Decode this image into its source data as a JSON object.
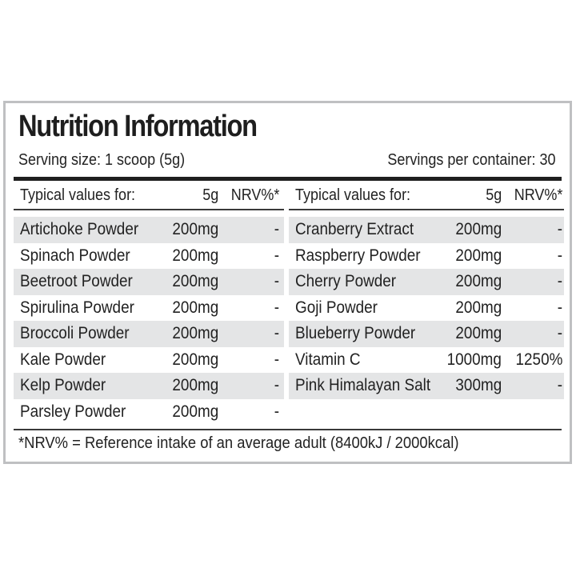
{
  "title": "Nutrition Information",
  "serving_size": "Serving size: 1 scoop (5g)",
  "servings_per_container": "Servings per container: 30",
  "colors": {
    "border": "#bfc0c2",
    "row_shade": "#e4e5e6",
    "text": "#222222"
  },
  "headers": {
    "typical": "Typical values for:",
    "amount": "5g",
    "nrv": "NRV%*"
  },
  "left_rows": [
    {
      "name": "Artichoke Powder",
      "amount": "200mg",
      "nrv": "-"
    },
    {
      "name": "Spinach Powder",
      "amount": "200mg",
      "nrv": "-"
    },
    {
      "name": "Beetroot Powder",
      "amount": "200mg",
      "nrv": "-"
    },
    {
      "name": "Spirulina Powder",
      "amount": "200mg",
      "nrv": "-"
    },
    {
      "name": "Broccoli Powder",
      "amount": "200mg",
      "nrv": "-"
    },
    {
      "name": "Kale Powder",
      "amount": "200mg",
      "nrv": "-"
    },
    {
      "name": "Kelp Powder",
      "amount": "200mg",
      "nrv": "-"
    },
    {
      "name": "Parsley Powder",
      "amount": "200mg",
      "nrv": "-"
    }
  ],
  "right_rows": [
    {
      "name": "Cranberry Extract",
      "amount": "200mg",
      "nrv": "-"
    },
    {
      "name": "Raspberry Powder",
      "amount": "200mg",
      "nrv": "-"
    },
    {
      "name": "Cherry Powder",
      "amount": "200mg",
      "nrv": "-"
    },
    {
      "name": "Goji Powder",
      "amount": "200mg",
      "nrv": "-"
    },
    {
      "name": "Blueberry Powder",
      "amount": "200mg",
      "nrv": "-"
    },
    {
      "name": "Vitamin C",
      "amount": "1000mg",
      "nrv": "1250%"
    },
    {
      "name": "Pink Himalayan Salt",
      "amount": "300mg",
      "nrv": "-"
    }
  ],
  "footnote": "*NRV% = Reference intake of an average adult (8400kJ / 2000kcal)"
}
